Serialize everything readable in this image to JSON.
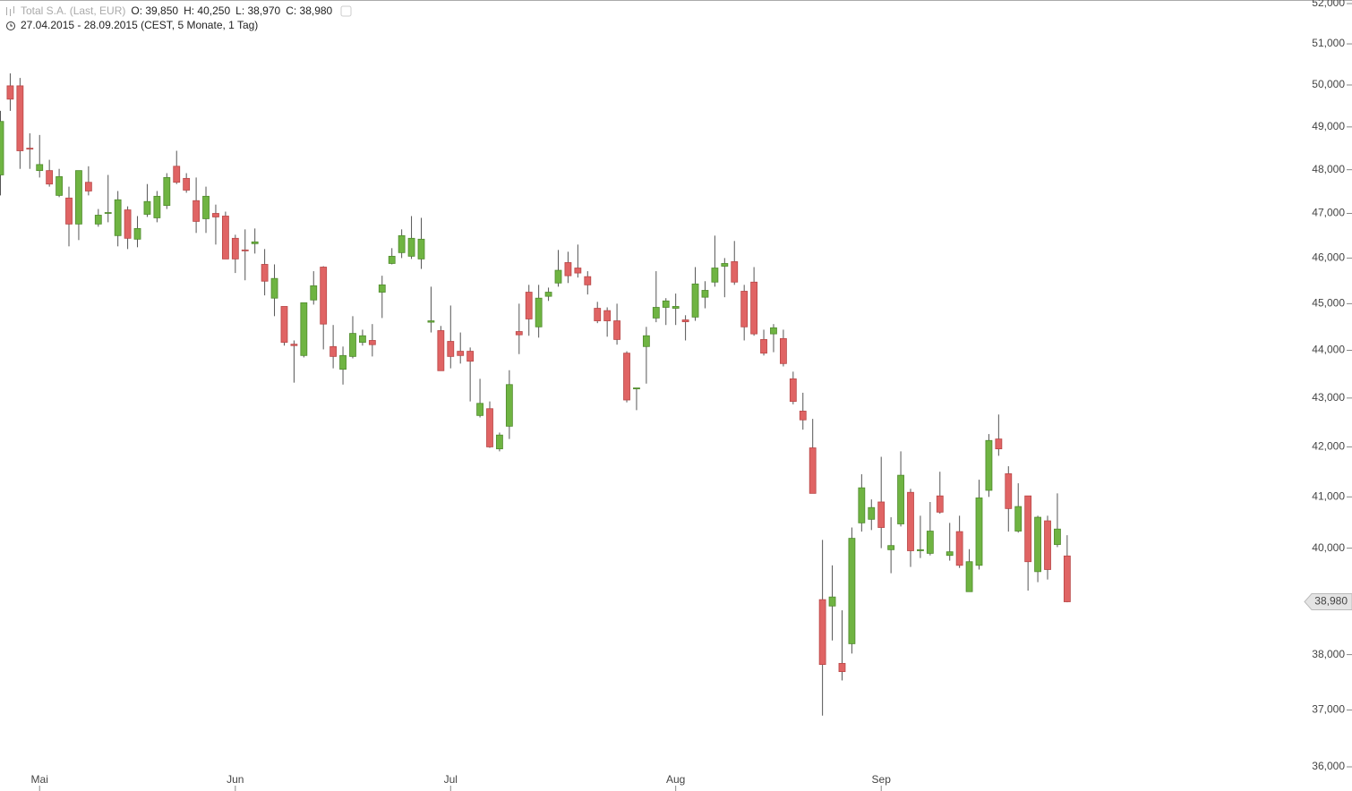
{
  "header": {
    "instrument": "Total S.A. (Last, EUR)",
    "ohlc": [
      "O: 39,850",
      "H: 40,250",
      "L: 38,970",
      "C: 38,980"
    ],
    "period": "27.04.2015 - 28.09.2015 (CEST, 5 Monate, 1 Tag)"
  },
  "chart_data": {
    "type": "candlestick",
    "categories": [
      null,
      null,
      null,
      null,
      "Mai",
      null,
      null,
      null,
      null,
      null,
      null,
      null,
      null,
      null,
      null,
      null,
      null,
      null,
      null,
      null,
      null,
      null,
      null,
      null,
      "Jun",
      null,
      null,
      null,
      null,
      null,
      null,
      null,
      null,
      null,
      null,
      null,
      null,
      null,
      null,
      null,
      null,
      null,
      null,
      null,
      null,
      null,
      "Jul",
      null,
      null,
      null,
      null,
      null,
      null,
      null,
      null,
      null,
      null,
      null,
      null,
      null,
      null,
      null,
      null,
      null,
      null,
      null,
      null,
      null,
      null,
      "Aug",
      null,
      null,
      null,
      null,
      null,
      null,
      null,
      null,
      null,
      null,
      null,
      null,
      null,
      null,
      null,
      null,
      null,
      null,
      null,
      null,
      "Sep",
      null,
      null,
      null,
      null,
      null,
      null,
      null,
      null,
      null,
      null,
      null,
      null,
      null,
      null,
      null,
      null,
      null,
      null,
      null
    ],
    "open": [
      47880,
      49980,
      49980,
      48500,
      47980,
      47980,
      47410,
      47350,
      46760,
      47710,
      46760,
      47000,
      46500,
      47080,
      46420,
      46980,
      46900,
      47180,
      48080,
      47800,
      47290,
      46880,
      47000,
      46940,
      46440,
      46180,
      46320,
      45860,
      45120,
      44940,
      44130,
      43890,
      45080,
      45800,
      44080,
      43600,
      43870,
      44170,
      44210,
      45250,
      45880,
      46120,
      46040,
      45980,
      44600,
      44420,
      44190,
      43980,
      43980,
      42640,
      42780,
      41960,
      42420,
      44400,
      45250,
      44500,
      45160,
      45450,
      45900,
      45780,
      45590,
      44900,
      44850,
      44630,
      43940,
      43190,
      44080,
      44690,
      44920,
      44900,
      44650,
      44710,
      45140,
      45470,
      45820,
      45920,
      45270,
      45470,
      44230,
      44350,
      44250,
      43400,
      42730,
      41980,
      39020,
      38900,
      37840,
      38200,
      40490,
      40560,
      40900,
      39970,
      40470,
      41090,
      39950,
      39900,
      41020,
      39860,
      40320,
      39170,
      39670,
      41130,
      42160,
      41460,
      40330,
      41020,
      39550,
      40530,
      40070,
      39850
    ],
    "high": [
      49380,
      50280,
      50170,
      48850,
      48810,
      48230,
      48020,
      47610,
      47980,
      48080,
      47100,
      47880,
      47510,
      47160,
      46940,
      47670,
      47510,
      47920,
      48440,
      47920,
      47820,
      47610,
      47200,
      47040,
      46520,
      46640,
      46660,
      46200,
      45860,
      44940,
      44210,
      45020,
      45710,
      45820,
      44540,
      44080,
      44730,
      44440,
      44560,
      45610,
      46220,
      46640,
      46940,
      46900,
      45370,
      44520,
      44960,
      44380,
      44060,
      43400,
      42930,
      42290,
      43580,
      45000,
      45410,
      45410,
      45350,
      46180,
      46140,
      46300,
      45710,
      45040,
      44920,
      45000,
      43980,
      43210,
      44500,
      45710,
      45120,
      45220,
      44750,
      45800,
      45490,
      46500,
      46000,
      46380,
      45410,
      45800,
      44440,
      44560,
      44440,
      43550,
      43110,
      42570,
      40160,
      39670,
      38820,
      40400,
      41450,
      40950,
      41800,
      40600,
      41910,
      41160,
      40630,
      40900,
      41500,
      40490,
      40630,
      39980,
      41340,
      42260,
      42660,
      41610,
      41270,
      41020,
      40630,
      40630,
      41070,
      40250
    ],
    "low": [
      47410,
      49380,
      48020,
      48020,
      47820,
      47610,
      47370,
      46260,
      46400,
      47410,
      46700,
      46800,
      46260,
      46200,
      46240,
      46920,
      46800,
      47100,
      47670,
      47470,
      46560,
      46560,
      46300,
      45980,
      45670,
      45510,
      46100,
      45180,
      44730,
      44100,
      43320,
      43850,
      44980,
      44020,
      43620,
      43280,
      43830,
      44100,
      43870,
      44690,
      45860,
      46000,
      45980,
      45760,
      44380,
      43570,
      43620,
      43720,
      42930,
      42600,
      41980,
      41910,
      42160,
      43920,
      44310,
      44270,
      45060,
      45370,
      45450,
      45570,
      45200,
      44580,
      44290,
      44120,
      42910,
      42750,
      43300,
      44600,
      44540,
      44540,
      44210,
      44630,
      44900,
      45370,
      45140,
      45410,
      44210,
      44310,
      43890,
      43960,
      43660,
      42870,
      42350,
      41070,
      36900,
      38260,
      37530,
      38020,
      40320,
      40350,
      40000,
      39520,
      40420,
      39640,
      39810,
      39860,
      40670,
      39760,
      39620,
      39170,
      39590,
      41000,
      41820,
      40320,
      40300,
      39190,
      39350,
      39400,
      40020,
      38970
    ],
    "close": [
      49130,
      49660,
      48440,
      48480,
      48120,
      47670,
      47840,
      46760,
      47980,
      47510,
      46960,
      47020,
      47310,
      46440,
      46660,
      47270,
      47390,
      47820,
      47710,
      47530,
      46820,
      47390,
      46920,
      45980,
      45980,
      46160,
      46360,
      45490,
      45550,
      44170,
      44100,
      45020,
      45390,
      44560,
      43870,
      43890,
      44360,
      44310,
      44120,
      45410,
      46040,
      46500,
      46440,
      46420,
      44630,
      43570,
      43870,
      43890,
      43770,
      42890,
      42000,
      42240,
      43280,
      44330,
      44670,
      45120,
      45250,
      45730,
      45610,
      45670,
      45410,
      44630,
      44630,
      44230,
      42960,
      43210,
      44310,
      44920,
      45060,
      44940,
      44610,
      45430,
      45290,
      45780,
      45880,
      45470,
      44500,
      44350,
      43940,
      44480,
      43720,
      42930,
      42550,
      41070,
      37820,
      39070,
      37690,
      40190,
      41180,
      40790,
      40400,
      40050,
      41430,
      39950,
      39970,
      40330,
      40700,
      39930,
      39670,
      39740,
      40980,
      42130,
      41960,
      40770,
      40810,
      39740,
      40600,
      39590,
      40370,
      38980
    ],
    "up_color": "#6fb442",
    "down_color": "#e06464",
    "log_scale": true,
    "ylim": [
      36000,
      52000
    ],
    "yticks": [
      {
        "value": 36000,
        "label": "36,000"
      },
      {
        "value": 37000,
        "label": "37,000"
      },
      {
        "value": 38000,
        "label": "38,000"
      },
      {
        "value": 40000,
        "label": "40,000"
      },
      {
        "value": 41000,
        "label": "41,000"
      },
      {
        "value": 42000,
        "label": "42,000"
      },
      {
        "value": 43000,
        "label": "43,000"
      },
      {
        "value": 44000,
        "label": "44,000"
      },
      {
        "value": 45000,
        "label": "45,000"
      },
      {
        "value": 46000,
        "label": "46,000"
      },
      {
        "value": 47000,
        "label": "47,000"
      },
      {
        "value": 48000,
        "label": "48,000"
      },
      {
        "value": 49000,
        "label": "49,000"
      },
      {
        "value": 50000,
        "label": "50,000"
      },
      {
        "value": 51000,
        "label": "51,000"
      },
      {
        "value": 52000,
        "label": "52,000"
      }
    ],
    "last_price": {
      "value": 38980,
      "label": "38,980"
    }
  }
}
